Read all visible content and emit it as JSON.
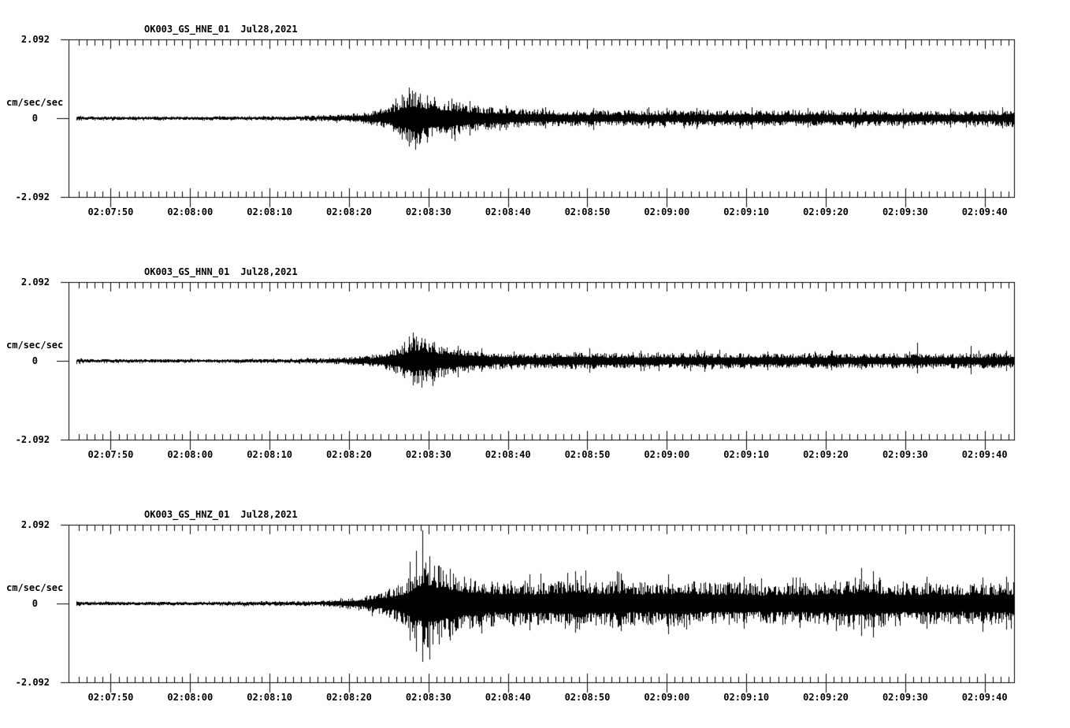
{
  "page": {
    "background": "#ffffff",
    "ink": "#000000"
  },
  "x_axis": {
    "tick_labels": [
      "02:07:50",
      "02:08:00",
      "02:08:10",
      "02:08:20",
      "02:08:30",
      "02:08:40",
      "02:08:50",
      "02:09:00",
      "02:09:10",
      "02:09:20",
      "02:09:30",
      "02:09:40"
    ],
    "major_interval_s": 10,
    "minor_interval_s": 1,
    "first_major_offset_s": 5.3,
    "duration_s": 119
  },
  "chart_data": [
    {
      "type": "line",
      "kind": "seismogram-waveform",
      "title_station": "OK003_GS_HNE_01",
      "title_date": "Jul28,2021",
      "ylabel": "cm/sec/sec",
      "y_tick_labels": {
        "max": "2.092",
        "zero": "0",
        "min": "-2.092"
      },
      "ylim": [
        -2.092,
        2.092
      ],
      "x_tick_labels": [
        "02:07:50",
        "02:08:00",
        "02:08:10",
        "02:08:20",
        "02:08:30",
        "02:08:40",
        "02:08:50",
        "02:09:00",
        "02:09:10",
        "02:09:20",
        "02:09:30",
        "02:09:40"
      ],
      "seed": 101,
      "envelope": [
        [
          0,
          0.05
        ],
        [
          20,
          0.05
        ],
        [
          28,
          0.06
        ],
        [
          32,
          0.08
        ],
        [
          35,
          0.11
        ],
        [
          37.5,
          0.16
        ],
        [
          39.5,
          0.27
        ],
        [
          41,
          0.42
        ],
        [
          42.3,
          0.63
        ],
        [
          43.3,
          0.75
        ],
        [
          44.3,
          0.68
        ],
        [
          45.5,
          0.57
        ],
        [
          47,
          0.52
        ],
        [
          49,
          0.44
        ],
        [
          51,
          0.36
        ],
        [
          53,
          0.31
        ],
        [
          55.5,
          0.27
        ],
        [
          58,
          0.24
        ],
        [
          61,
          0.22
        ],
        [
          65,
          0.22
        ],
        [
          70,
          0.21
        ],
        [
          75,
          0.22
        ],
        [
          80,
          0.21
        ],
        [
          85,
          0.22
        ],
        [
          90,
          0.21
        ],
        [
          95,
          0.21
        ],
        [
          100,
          0.21
        ],
        [
          105,
          0.2
        ],
        [
          110,
          0.19
        ],
        [
          114,
          0.2
        ],
        [
          117,
          0.22
        ],
        [
          119,
          0.24
        ]
      ],
      "spikes": [
        [
          41.9,
          0.62,
          0.58
        ],
        [
          42.8,
          0.82,
          0.74
        ],
        [
          43.6,
          0.7,
          0.82
        ],
        [
          45.1,
          0.6,
          0.66
        ],
        [
          48.2,
          0.52,
          0.55
        ],
        [
          50.5,
          0.45,
          0.48
        ],
        [
          55,
          0.34,
          0.3
        ],
        [
          60,
          0.3,
          0.27
        ],
        [
          66,
          0.28,
          0.3
        ],
        [
          73,
          0.3,
          0.26
        ],
        [
          79,
          0.27,
          0.3
        ],
        [
          86,
          0.3,
          0.28
        ],
        [
          93,
          0.27,
          0.25
        ],
        [
          99,
          0.28,
          0.26
        ],
        [
          105,
          0.25,
          0.27
        ],
        [
          111,
          0.26,
          0.24
        ],
        [
          117.5,
          0.3,
          0.27
        ]
      ]
    },
    {
      "type": "line",
      "kind": "seismogram-waveform",
      "title_station": "OK003_GS_HNN_01",
      "title_date": "Jul28,2021",
      "ylabel": "cm/sec/sec",
      "y_tick_labels": {
        "max": "2.092",
        "zero": "0",
        "min": "-2.092"
      },
      "ylim": [
        -2.092,
        2.092
      ],
      "x_tick_labels": [
        "02:07:50",
        "02:08:00",
        "02:08:10",
        "02:08:20",
        "02:08:30",
        "02:08:40",
        "02:08:50",
        "02:09:00",
        "02:09:10",
        "02:09:20",
        "02:09:30",
        "02:09:40"
      ],
      "seed": 202,
      "envelope": [
        [
          0,
          0.05
        ],
        [
          20,
          0.05
        ],
        [
          28,
          0.06
        ],
        [
          32,
          0.07
        ],
        [
          35,
          0.1
        ],
        [
          38,
          0.16
        ],
        [
          40,
          0.25
        ],
        [
          42,
          0.4
        ],
        [
          43.5,
          0.68
        ],
        [
          44.8,
          0.6
        ],
        [
          46,
          0.5
        ],
        [
          48,
          0.42
        ],
        [
          50,
          0.33
        ],
        [
          52,
          0.28
        ],
        [
          54,
          0.24
        ],
        [
          57,
          0.22
        ],
        [
          60,
          0.21
        ],
        [
          64,
          0.24
        ],
        [
          67,
          0.22
        ],
        [
          70,
          0.21
        ],
        [
          75,
          0.21
        ],
        [
          80,
          0.22
        ],
        [
          85,
          0.21
        ],
        [
          90,
          0.2
        ],
        [
          95,
          0.21
        ],
        [
          100,
          0.2
        ],
        [
          105,
          0.21
        ],
        [
          110,
          0.2
        ],
        [
          115,
          0.21
        ],
        [
          119,
          0.23
        ]
      ],
      "spikes": [
        [
          42.2,
          0.5,
          0.46
        ],
        [
          43.3,
          0.75,
          0.64
        ],
        [
          44.4,
          0.6,
          0.72
        ],
        [
          46,
          0.5,
          0.55
        ],
        [
          49,
          0.4,
          0.44
        ],
        [
          52,
          0.33,
          0.3
        ],
        [
          65.5,
          0.34,
          0.3
        ],
        [
          72,
          0.28,
          0.26
        ],
        [
          80,
          0.27,
          0.29
        ],
        [
          88,
          0.26,
          0.24
        ],
        [
          96,
          0.27,
          0.25
        ],
        [
          106.8,
          0.48,
          0.34
        ],
        [
          113.5,
          0.4,
          0.36
        ],
        [
          118,
          0.28,
          0.26
        ]
      ]
    },
    {
      "type": "line",
      "kind": "seismogram-waveform",
      "title_station": "OK003_GS_HNZ_01",
      "title_date": "Jul28,2021",
      "ylabel": "cm/sec/sec",
      "y_tick_labels": {
        "max": "2.092",
        "zero": "0",
        "min": "-2.092"
      },
      "ylim": [
        -2.092,
        2.092
      ],
      "x_tick_labels": [
        "02:07:50",
        "02:08:00",
        "02:08:10",
        "02:08:20",
        "02:08:30",
        "02:08:40",
        "02:08:50",
        "02:09:00",
        "02:09:10",
        "02:09:20",
        "02:09:30",
        "02:09:40"
      ],
      "seed": 303,
      "envelope": [
        [
          0,
          0.05
        ],
        [
          18,
          0.05
        ],
        [
          26,
          0.06
        ],
        [
          30,
          0.07
        ],
        [
          32,
          0.08
        ],
        [
          34,
          0.11
        ],
        [
          36,
          0.16
        ],
        [
          38,
          0.24
        ],
        [
          40,
          0.36
        ],
        [
          41.5,
          0.5
        ],
        [
          43,
          0.75
        ],
        [
          44,
          1.1
        ],
        [
          45,
          1.25
        ],
        [
          46,
          1.1
        ],
        [
          47.5,
          0.95
        ],
        [
          49,
          0.8
        ],
        [
          51,
          0.7
        ],
        [
          53,
          0.62
        ],
        [
          55,
          0.6
        ],
        [
          57,
          0.65
        ],
        [
          59,
          0.58
        ],
        [
          61,
          0.62
        ],
        [
          63,
          0.72
        ],
        [
          65,
          0.68
        ],
        [
          67,
          0.6
        ],
        [
          69,
          0.65
        ],
        [
          71,
          0.6
        ],
        [
          73,
          0.58
        ],
        [
          75,
          0.62
        ],
        [
          77,
          0.66
        ],
        [
          79,
          0.6
        ],
        [
          81,
          0.56
        ],
        [
          84,
          0.58
        ],
        [
          87,
          0.54
        ],
        [
          90,
          0.57
        ],
        [
          93,
          0.55
        ],
        [
          96,
          0.6
        ],
        [
          98,
          0.66
        ],
        [
          100,
          0.74
        ],
        [
          102,
          0.66
        ],
        [
          104,
          0.6
        ],
        [
          106,
          0.56
        ],
        [
          108,
          0.58
        ],
        [
          110,
          0.55
        ],
        [
          112,
          0.57
        ],
        [
          114,
          0.54
        ],
        [
          116,
          0.57
        ],
        [
          119,
          0.6
        ]
      ],
      "spikes": [
        [
          42.9,
          1.1,
          1.0
        ],
        [
          43.7,
          1.4,
          1.28
        ],
        [
          44.5,
          1.95,
          1.55
        ],
        [
          45.4,
          1.25,
          1.5
        ],
        [
          46.6,
          1.0,
          1.1
        ],
        [
          48,
          0.92,
          0.98
        ],
        [
          58,
          0.78,
          0.7
        ],
        [
          63.8,
          0.85,
          0.78
        ],
        [
          69.5,
          0.8,
          0.72
        ],
        [
          75.5,
          0.78,
          0.82
        ],
        [
          85,
          0.72,
          0.66
        ],
        [
          92,
          0.7,
          0.64
        ],
        [
          99.8,
          0.95,
          0.85
        ],
        [
          101.2,
          0.85,
          0.9
        ],
        [
          108,
          0.72,
          0.66
        ],
        [
          115,
          0.7,
          0.74
        ],
        [
          118,
          0.72,
          0.68
        ]
      ]
    }
  ]
}
